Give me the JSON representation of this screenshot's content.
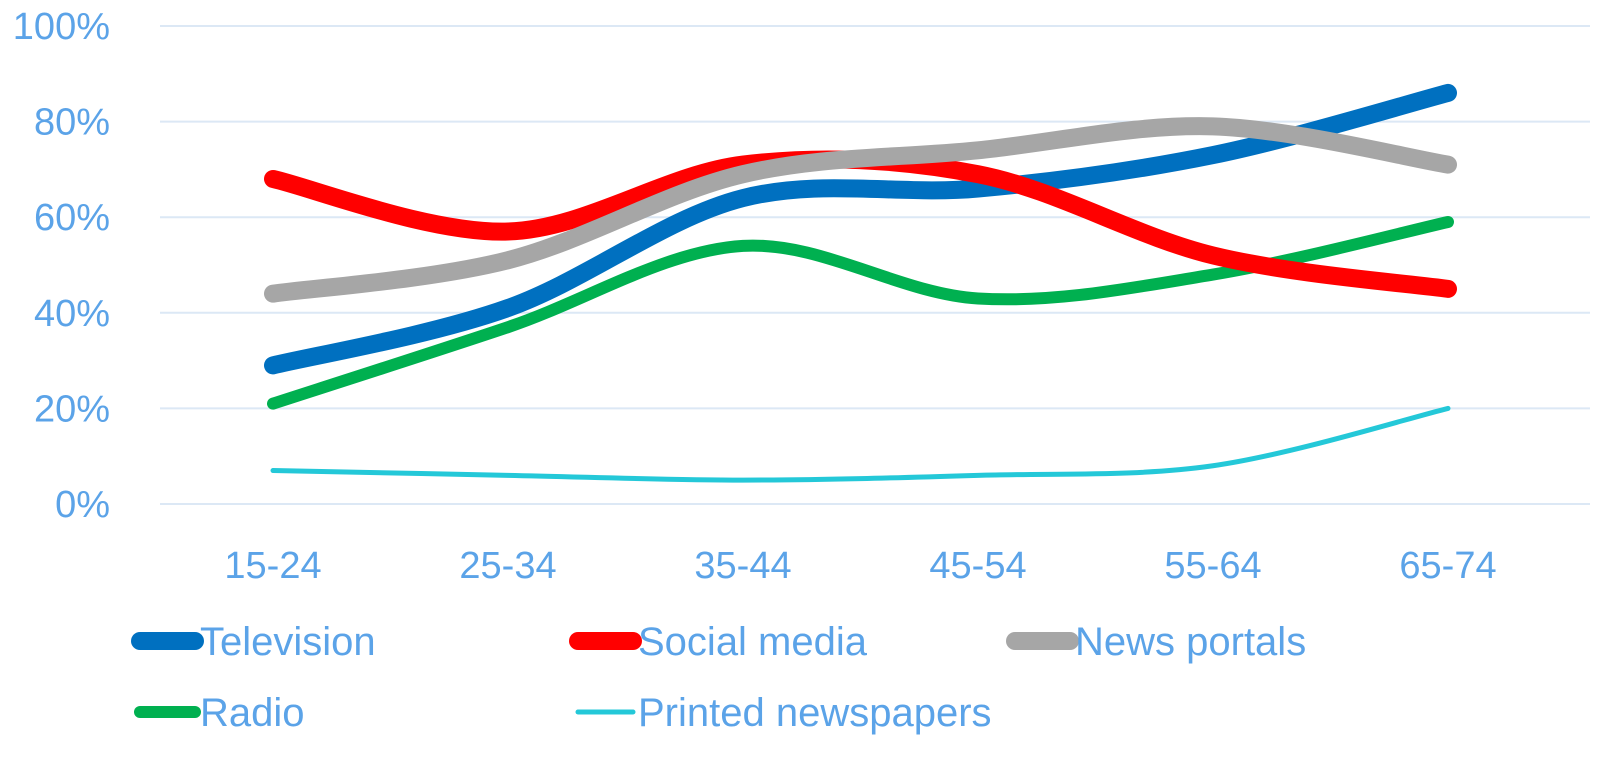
{
  "chart_data": {
    "type": "line",
    "categories": [
      "15-24",
      "25-34",
      "35-44",
      "45-54",
      "55-64",
      "65-74"
    ],
    "ylim": [
      0,
      100
    ],
    "yticks": [
      "0%",
      "20%",
      "40%",
      "60%",
      "80%",
      "100%"
    ],
    "grid": true,
    "legend_position": "bottom",
    "series": [
      {
        "name": "Television",
        "color": "#0070c0",
        "values": [
          29,
          41,
          64,
          66,
          73,
          86
        ]
      },
      {
        "name": "Social media",
        "color": "#ff0000",
        "values": [
          68,
          57,
          71,
          69,
          52,
          45
        ]
      },
      {
        "name": "News portals",
        "color": "#a6a6a6",
        "values": [
          44,
          51,
          69,
          74,
          79,
          71
        ]
      },
      {
        "name": "Radio",
        "color": "#00b050",
        "values": [
          21,
          37,
          54,
          43,
          48,
          59
        ]
      },
      {
        "name": "Printed newspapers",
        "color": "#24c8d8",
        "values": [
          7,
          6,
          5,
          6,
          8,
          20
        ]
      }
    ]
  }
}
